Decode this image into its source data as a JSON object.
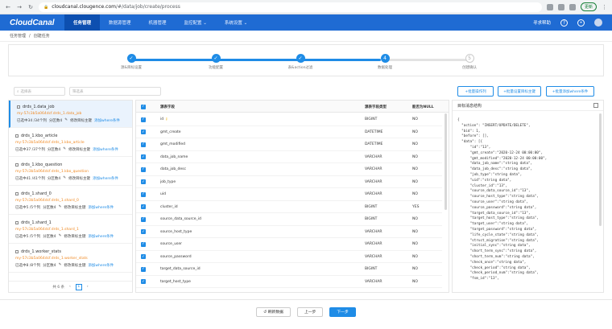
{
  "browser": {
    "url_host": "cloudcanal.clougence.com",
    "url_path": "/#/data/job/create/process",
    "update_label": "更新"
  },
  "app": {
    "logo": "CloudCanal",
    "nav": [
      "任务管理",
      "数据源管理",
      "机器管理",
      "监控配置 ⌄",
      "系统设置 ⌄"
    ],
    "help": "寻求帮助"
  },
  "breadcrumb": {
    "parent": "任务管理",
    "sep": "/",
    "current": "创建任务"
  },
  "steps": [
    {
      "num": "✓",
      "label": "源&目标设置"
    },
    {
      "num": "✓",
      "label": "功能配置"
    },
    {
      "num": "✓",
      "label": "表&action过滤"
    },
    {
      "num": "4",
      "label": "数据处理"
    },
    {
      "num": "5",
      "label": "创建确认"
    }
  ],
  "toolbar": {
    "search_left": "选择表",
    "search_right": "筛选表",
    "btn1": "+批量操作列",
    "btn2": "+批量设置目标主键",
    "btn3": "+批量添加where条件"
  },
  "jobs": [
    {
      "name": "drds_1.data_job",
      "src": "my-57c3b5a064dcf.drds_1.data_job",
      "meta": "已选中34 /34个列",
      "part": "分区数4",
      "pk": "修改目标主键",
      "where": "添加where条件"
    },
    {
      "name": "drds_1.kbo_article",
      "src": "my-57c3b5a064dcf.drds_1.kbo_article",
      "meta": "已选中37 /37个列",
      "part": "分区数4",
      "pk": "修改目标主键",
      "where": "添加where条件"
    },
    {
      "name": "drds_1.kbo_question",
      "src": "my-57c3b5a064dcf.drds_1.kbo_question",
      "meta": "已选中41 /41个列",
      "part": "分区数4",
      "pk": "修改目标主键",
      "where": "添加where条件"
    },
    {
      "name": "drds_1.shard_0",
      "src": "my-57c3b5a064dcf.drds_1.shard_0",
      "meta": "已选中5 /5个列",
      "part": "分区数4",
      "pk": "修改目标主键",
      "where": "添加where条件"
    },
    {
      "name": "drds_1.shard_1",
      "src": "my-57c3b5a064dcf.drds_1.shard_1",
      "meta": "已选中5 /5个列",
      "part": "分区数4",
      "pk": "修改目标主键",
      "where": "添加where条件"
    },
    {
      "name": "drds_1.worker_stats",
      "src": "my-57c3b5a064dcf.drds_1.worker_stats",
      "meta": "已选中8 /8个列",
      "part": "分区数4",
      "pk": "修改目标主键",
      "where": "添加where条件"
    }
  ],
  "pager": {
    "total": "共 6 条",
    "page": "1"
  },
  "table": {
    "headers": [
      "源表字段",
      "源表字段类型",
      "能否为NULL"
    ],
    "rows": [
      {
        "field": "id",
        "key": true,
        "type": "BIGINT",
        "nullable": "NO"
      },
      {
        "field": "gmt_create",
        "key": false,
        "type": "DATETIME",
        "nullable": "NO"
      },
      {
        "field": "gmt_modified",
        "key": false,
        "type": "DATETIME",
        "nullable": "NO"
      },
      {
        "field": "data_job_name",
        "key": false,
        "type": "VARCHAR",
        "nullable": "NO"
      },
      {
        "field": "data_job_desc",
        "key": false,
        "type": "VARCHAR",
        "nullable": "NO"
      },
      {
        "field": "job_type",
        "key": false,
        "type": "VARCHAR",
        "nullable": "NO"
      },
      {
        "field": "uid",
        "key": false,
        "type": "VARCHAR",
        "nullable": "NO"
      },
      {
        "field": "cluster_id",
        "key": false,
        "type": "BIGINT",
        "nullable": "YES"
      },
      {
        "field": "source_data_source_id",
        "key": false,
        "type": "BIGINT",
        "nullable": "NO"
      },
      {
        "field": "source_host_type",
        "key": false,
        "type": "VARCHAR",
        "nullable": "NO"
      },
      {
        "field": "source_user",
        "key": false,
        "type": "VARCHAR",
        "nullable": "NO"
      },
      {
        "field": "source_password",
        "key": false,
        "type": "VARCHAR",
        "nullable": "NO"
      },
      {
        "field": "target_data_source_id",
        "key": false,
        "type": "BIGINT",
        "nullable": "NO"
      },
      {
        "field": "target_host_type",
        "key": false,
        "type": "VARCHAR",
        "nullable": "NO"
      }
    ]
  },
  "json_panel": {
    "title": "目标消息结构",
    "content": "{\n  \"action\": \"INSERT/UPDATE/DELETE\",\n  \"bid\": 1,\n  \"before\": [],\n  \"data\": [{\n      \"id\":\"13\",\n      \"gmt_create\":\"2020-12-24 00:00:00\",\n      \"gmt_modified\":\"2020-12-24 00:00:00\",\n      \"data_job_name\":\"string data\",\n      \"data_job_desc\":\"string data\",\n      \"job_type\":\"string data\",\n      \"uid\":\"string data\",\n      \"cluster_id\":\"13\",\n      \"source_data_source_id\":\"13\",\n      \"source_host_type\":\"string data\",\n      \"source_user\":\"string data\",\n      \"source_password\":\"string data\",\n      \"target_data_source_id\":\"13\",\n      \"target_host_type\":\"string data\",\n      \"target_user\":\"string data\",\n      \"target_password\":\"string data\",\n      \"life_cycle_state\":\"string data\",\n      \"struct_migration\":\"string data\",\n      \"initial_sync\":\"string data\",\n      \"short_term_sync\":\"string data\",\n      \"short_term_num\":\"string data\",\n      \"check_once\":\"string data\",\n      \"check_period\":\"string data\",\n      \"check_period_num\":\"string data\",\n      \"fsm_id\":\"13\","
  },
  "footer": {
    "refresh": "↺ 刷新数据",
    "prev": "上一步",
    "next": "下一步"
  },
  "colors": {
    "brand": "#1f6bd3",
    "accent": "#1f8ce6",
    "source_text": "#f08a24"
  }
}
